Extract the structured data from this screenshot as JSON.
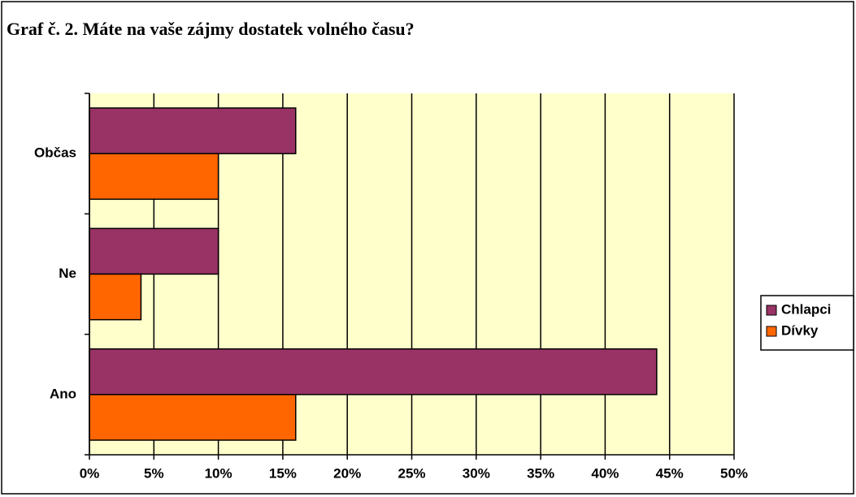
{
  "chart_data": {
    "type": "bar",
    "orientation": "horizontal",
    "title": "Graf č. 2. Máte na vaše zájmy dostatek volného času?",
    "categories": [
      "Ano",
      "Ne",
      "Občas"
    ],
    "series": [
      {
        "name": "Chlapci",
        "color": "#993366",
        "values": [
          44,
          10,
          16
        ]
      },
      {
        "name": "Dívky",
        "color": "#FF6600",
        "values": [
          16,
          4,
          10
        ]
      }
    ],
    "xlim": [
      0,
      50
    ],
    "xticks": [
      {
        "value": 0,
        "label": "0%"
      },
      {
        "value": 5,
        "label": "5%"
      },
      {
        "value": 10,
        "label": "10%"
      },
      {
        "value": 15,
        "label": "15%"
      },
      {
        "value": 20,
        "label": "20%"
      },
      {
        "value": 25,
        "label": "25%"
      },
      {
        "value": 30,
        "label": "30%"
      },
      {
        "value": 35,
        "label": "35%"
      },
      {
        "value": 40,
        "label": "40%"
      },
      {
        "value": 45,
        "label": "45%"
      },
      {
        "value": 50,
        "label": "50%"
      }
    ],
    "grid": true,
    "plot_background": "#FFFFCC",
    "legend": "right"
  }
}
